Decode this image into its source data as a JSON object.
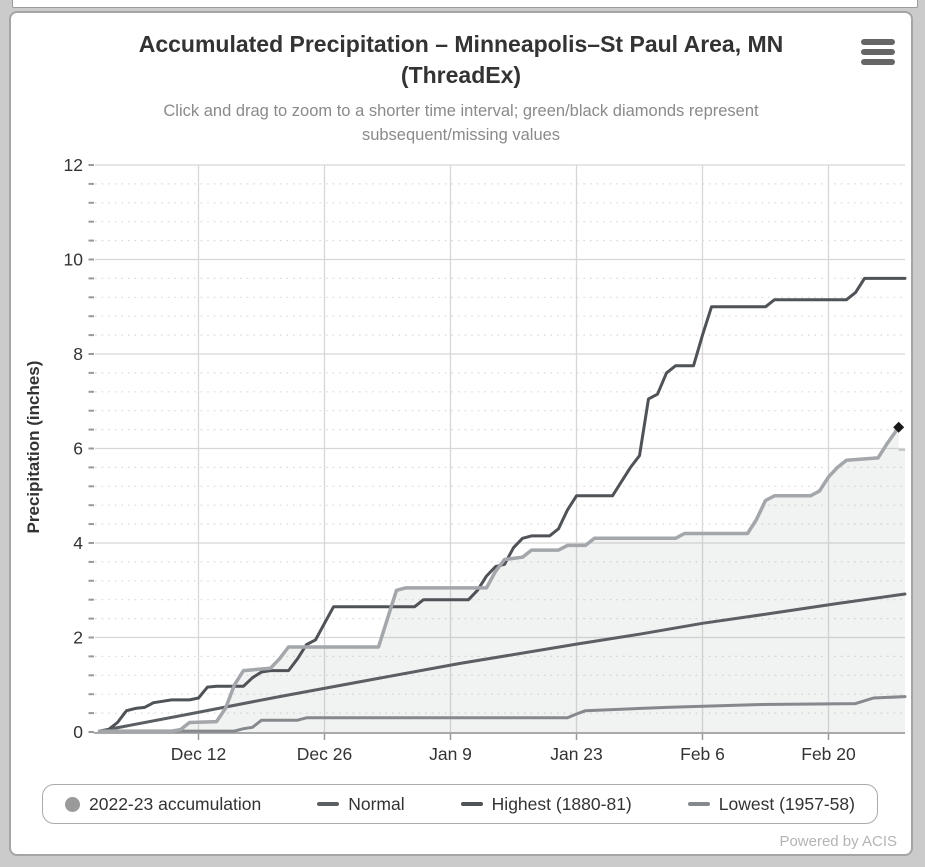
{
  "chart": {
    "title_line1": "Accumulated Precipitation – Minneapolis–St Paul Area, MN",
    "title_line2": "(ThreadEx)",
    "subtitle_line1": "Click and drag to zoom to a shorter time interval; green/black diamonds represent",
    "subtitle_line2": "subsequent/missing values",
    "powered_by": "Powered by ACIS"
  },
  "chart_data": {
    "type": "line",
    "title": "Accumulated Precipitation – Minneapolis–St Paul Area, MN (ThreadEx)",
    "subtitle": "Click and drag to zoom to a shorter time interval; green/black diamonds represent subsequent/missing values",
    "ylabel": "Precipitation (inches)",
    "ylim": [
      0,
      12
    ],
    "y_major_ticks": [
      0,
      2,
      4,
      6,
      8,
      10,
      12
    ],
    "y_minor_step": 0.4,
    "x_domain_note": "days since Dec 1 (0) through end of Feb (89.5)",
    "x_tick_days": [
      11,
      25,
      39,
      53,
      67,
      81
    ],
    "x_tick_labels": [
      "Dec 12",
      "Dec 26",
      "Jan 9",
      "Jan 23",
      "Feb 6",
      "Feb 20"
    ],
    "grid": {
      "major_color": "#d7d7d7",
      "minor_color": "#d9d9d9",
      "axis_line_color": "#a9a9a9",
      "tick_color": "#999999"
    },
    "legend_position": "bottom",
    "series": [
      {
        "name": "2022-23 accumulation",
        "color": "#a3a6aa",
        "legend_marker_color": "#9a9a9a",
        "type": "area",
        "fill_opacity": 0.15,
        "points": [
          [
            0,
            0.02
          ],
          [
            8,
            0.02
          ],
          [
            9,
            0.05
          ],
          [
            10,
            0.2
          ],
          [
            13,
            0.22
          ],
          [
            14,
            0.5
          ],
          [
            15,
            1.0
          ],
          [
            16,
            1.3
          ],
          [
            19,
            1.35
          ],
          [
            20,
            1.55
          ],
          [
            21,
            1.8
          ],
          [
            31,
            1.8
          ],
          [
            32,
            2.4
          ],
          [
            33,
            3.0
          ],
          [
            34,
            3.05
          ],
          [
            43,
            3.05
          ],
          [
            44,
            3.4
          ],
          [
            45,
            3.65
          ],
          [
            47,
            3.7
          ],
          [
            48,
            3.85
          ],
          [
            51,
            3.85
          ],
          [
            52,
            3.95
          ],
          [
            54,
            3.95
          ],
          [
            55,
            4.1
          ],
          [
            64,
            4.1
          ],
          [
            65,
            4.2
          ],
          [
            72,
            4.2
          ],
          [
            73,
            4.5
          ],
          [
            74,
            4.9
          ],
          [
            75,
            5.0
          ],
          [
            79,
            5.0
          ],
          [
            80,
            5.1
          ],
          [
            81,
            5.4
          ],
          [
            82,
            5.6
          ],
          [
            83,
            5.75
          ],
          [
            86.5,
            5.8
          ],
          [
            87.5,
            6.1
          ],
          [
            88.8,
            6.45
          ]
        ]
      },
      {
        "name": "Normal",
        "color": "#5b5e62",
        "type": "line",
        "points": [
          [
            0,
            0.02
          ],
          [
            10,
            0.38
          ],
          [
            20,
            0.75
          ],
          [
            30,
            1.1
          ],
          [
            40,
            1.45
          ],
          [
            53,
            1.86
          ],
          [
            60,
            2.07
          ],
          [
            67,
            2.3
          ],
          [
            75,
            2.52
          ],
          [
            82,
            2.72
          ],
          [
            89.5,
            2.92
          ]
        ]
      },
      {
        "name": "Highest (1880-81)",
        "color": "#4f5256",
        "type": "line",
        "points": [
          [
            0,
            0.02
          ],
          [
            1,
            0.05
          ],
          [
            2,
            0.2
          ],
          [
            3,
            0.45
          ],
          [
            4,
            0.5
          ],
          [
            5,
            0.52
          ],
          [
            6,
            0.62
          ],
          [
            7,
            0.65
          ],
          [
            8,
            0.68
          ],
          [
            10,
            0.68
          ],
          [
            11,
            0.72
          ],
          [
            12,
            0.95
          ],
          [
            13,
            0.97
          ],
          [
            16,
            0.97
          ],
          [
            17,
            1.15
          ],
          [
            18,
            1.27
          ],
          [
            19,
            1.3
          ],
          [
            21,
            1.3
          ],
          [
            22,
            1.55
          ],
          [
            23,
            1.85
          ],
          [
            24,
            1.95
          ],
          [
            25,
            2.3
          ],
          [
            26,
            2.65
          ],
          [
            35,
            2.65
          ],
          [
            36,
            2.8
          ],
          [
            41,
            2.8
          ],
          [
            42,
            3.0
          ],
          [
            43,
            3.3
          ],
          [
            44,
            3.5
          ],
          [
            45,
            3.55
          ],
          [
            46,
            3.9
          ],
          [
            47,
            4.1
          ],
          [
            48,
            4.15
          ],
          [
            50,
            4.15
          ],
          [
            51,
            4.3
          ],
          [
            52,
            4.7
          ],
          [
            53,
            5.0
          ],
          [
            57,
            5.0
          ],
          [
            58,
            5.3
          ],
          [
            59,
            5.6
          ],
          [
            60,
            5.85
          ],
          [
            61,
            7.05
          ],
          [
            62,
            7.15
          ],
          [
            63,
            7.6
          ],
          [
            64,
            7.75
          ],
          [
            66,
            7.75
          ],
          [
            67,
            8.4
          ],
          [
            68,
            9.0
          ],
          [
            74,
            9.0
          ],
          [
            75,
            9.15
          ],
          [
            83,
            9.15
          ],
          [
            84,
            9.3
          ],
          [
            85,
            9.6
          ],
          [
            89.5,
            9.6
          ]
        ]
      },
      {
        "name": "Lowest (1957-58)",
        "color": "#85888c",
        "type": "line",
        "points": [
          [
            0,
            0.02
          ],
          [
            15,
            0.02
          ],
          [
            16,
            0.07
          ],
          [
            17,
            0.1
          ],
          [
            18,
            0.25
          ],
          [
            22,
            0.25
          ],
          [
            23,
            0.3
          ],
          [
            52,
            0.3
          ],
          [
            53,
            0.38
          ],
          [
            54,
            0.45
          ],
          [
            63,
            0.52
          ],
          [
            73,
            0.58
          ],
          [
            84,
            0.6
          ],
          [
            86,
            0.72
          ],
          [
            89.5,
            0.75
          ]
        ]
      }
    ],
    "end_marker": {
      "series": "2022-23 accumulation",
      "day": 88.8,
      "value": 6.45,
      "shape": "diamond",
      "color": "#1a1a1a",
      "meaning": "missing value"
    },
    "post_segment": {
      "color": "#c2c5c8",
      "points": [
        [
          88.8,
          5.97
        ],
        [
          89.5,
          5.97
        ]
      ]
    }
  }
}
